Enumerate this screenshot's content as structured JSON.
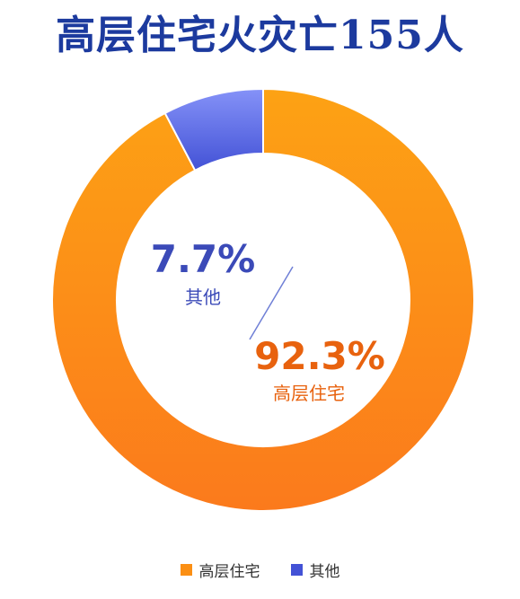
{
  "title": "高层住宅火灾亡155人",
  "colors": {
    "title": "#1c3a9e",
    "highrise": "#fb8f14",
    "highrise_light": "#fda214",
    "highrise_dark": "#fb7a1c",
    "other_light": "#8592f8",
    "other_dark": "#4352d6",
    "highrise_label": "#e8620e",
    "other_label": "#3b4ab8"
  },
  "chart_data": {
    "type": "pie",
    "variant": "donut",
    "title": "高层住宅火灾亡155人",
    "slices": [
      {
        "name": "高层住宅",
        "value": 92.3,
        "label": "92.3%"
      },
      {
        "name": "其他",
        "value": 7.7,
        "label": "7.7%"
      }
    ],
    "legend": [
      "高层住宅",
      "其他"
    ],
    "legend_position": "bottom"
  }
}
